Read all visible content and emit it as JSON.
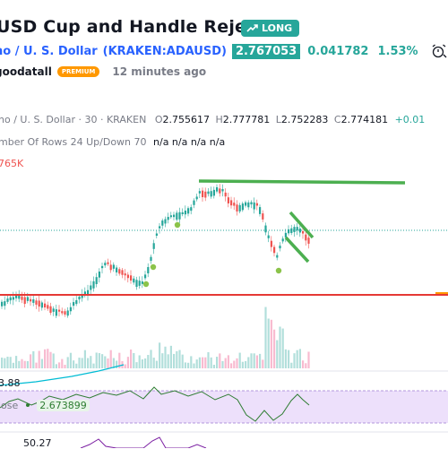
{
  "header": {
    "title": "USD Cup and Handle Rejected",
    "badge": "LONG",
    "symbol_name": "no / U. S. Dollar",
    "symbol_ticker": "(KRAKEN:ADAUSD)",
    "price": "2.767053",
    "change": "0.041782",
    "change_pct": "1.53%",
    "author": "goodatall",
    "author_badge": "PREMIUM",
    "time_ago": "12 minutes ago"
  },
  "legend": {
    "series": "no / U. S. Dollar · 30 · KRAKEN",
    "open_label": "O",
    "open": "2.755617",
    "high_label": "H",
    "high": "2.777781",
    "low_label": "L",
    "low": "2.752283",
    "close_label": "C",
    "close": "2.774181",
    "delta": "+0.01",
    "vp_label": "mber Of Rows 24 Up/Down 70",
    "vp_values": "n/a n/a n/a n/a",
    "volume": "765K"
  },
  "indicators": {
    "ma_value": "3.88",
    "rsi_label": "lose",
    "rsi_value": "2.673899",
    "osc_value": "50.27"
  },
  "colors": {
    "up": "#26a69a",
    "down": "#ef5350",
    "drawing_green": "#4caf50",
    "support_red": "#e53935",
    "accent": "#2962ff",
    "premium": "#ff9800"
  }
}
